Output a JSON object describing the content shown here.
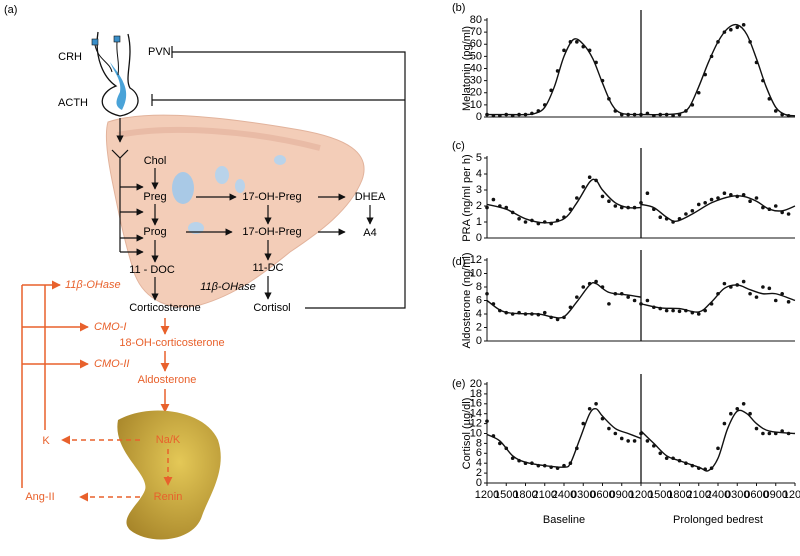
{
  "diagram": {
    "labels": [
      "(a)",
      "CRH",
      "PVN",
      "ACTH",
      "Chol",
      "Preg",
      "17-OH-Preg",
      "DHEA",
      "Prog",
      "17-OH-Preg",
      "A4",
      "11 - DOC",
      "11-DC",
      "11β-OHase",
      "Corticosterone",
      "Cortisol",
      "11β-OHase",
      "CMO-I",
      "18-OH-corticosterone",
      "CMO-II",
      "Aldosterone",
      "Na/K",
      "Renin",
      "K",
      "Ang-II"
    ]
  },
  "chart_data": [
    {
      "type": "scatter",
      "panel_label": "(b)",
      "ylabel": "Melatonin (pg/ml)",
      "xlim": [
        0,
        48
      ],
      "ylim": [
        0,
        80
      ],
      "yticks": [
        0,
        10,
        20,
        30,
        40,
        50,
        60,
        70,
        80
      ],
      "divider": 24,
      "series": [
        {
          "mode": "markers",
          "color": "#111111",
          "x": [
            0,
            1,
            2,
            3,
            4,
            5,
            6,
            7,
            8,
            9,
            10,
            11,
            12,
            13,
            14,
            15,
            16,
            17,
            18,
            19,
            20,
            21,
            22,
            23,
            24,
            25,
            26,
            27,
            28,
            29,
            30,
            31,
            32,
            33,
            34,
            35,
            36,
            37,
            38,
            39,
            40,
            41,
            42,
            43,
            44,
            45,
            46,
            47
          ],
          "values": [
            2,
            1,
            1,
            2,
            1,
            2,
            2,
            3,
            5,
            10,
            22,
            38,
            55,
            62,
            62,
            58,
            55,
            45,
            30,
            15,
            5,
            2,
            2,
            2,
            2,
            3,
            1,
            2,
            2,
            1,
            2,
            5,
            10,
            20,
            35,
            50,
            62,
            70,
            72,
            74,
            76,
            62,
            45,
            30,
            15,
            5,
            2,
            1
          ]
        },
        {
          "mode": "line",
          "color": "#111111",
          "x": [
            0,
            3,
            6,
            7.5,
            9,
            10.5,
            12,
            13.5,
            15,
            16.5,
            18,
            19.5,
            21,
            24
          ],
          "values": [
            2,
            2,
            2,
            3,
            8,
            25,
            50,
            64,
            60,
            48,
            28,
            10,
            3,
            2
          ]
        },
        {
          "mode": "line",
          "color": "#111111",
          "x": [
            24,
            27,
            30,
            31.5,
            33,
            34.5,
            36,
            37.5,
            39,
            40.5,
            42,
            43.5,
            45,
            46.5,
            48
          ],
          "values": [
            2,
            2,
            3,
            8,
            25,
            45,
            62,
            73,
            76,
            68,
            48,
            25,
            8,
            2,
            1
          ]
        }
      ]
    },
    {
      "type": "scatter",
      "panel_label": "(c)",
      "ylabel": "PRA (ng/ml per h)",
      "xlim": [
        0,
        48
      ],
      "ylim": [
        0,
        5
      ],
      "yticks": [
        0,
        1,
        2,
        3,
        4,
        5
      ],
      "divider": 24,
      "series": [
        {
          "mode": "markers",
          "color": "#111111",
          "x": [
            0,
            1,
            2,
            3,
            4,
            5,
            6,
            7,
            8,
            9,
            10,
            11,
            12,
            13,
            14,
            15,
            16,
            17,
            18,
            19,
            20,
            21,
            22,
            23,
            24,
            25,
            26,
            27,
            28,
            29,
            30,
            31,
            32,
            33,
            34,
            35,
            36,
            37,
            38,
            39,
            40,
            41,
            42,
            43,
            44,
            45,
            46,
            47
          ],
          "values": [
            1.9,
            2.4,
            2.0,
            1.9,
            1.6,
            1.2,
            1.0,
            1.1,
            0.9,
            1.0,
            0.9,
            1.1,
            1.3,
            1.8,
            2.5,
            3.2,
            3.8,
            3.6,
            2.6,
            2.3,
            2.0,
            1.9,
            1.9,
            1.9,
            2.2,
            2.8,
            1.8,
            1.3,
            1.2,
            1.0,
            1.2,
            1.5,
            1.7,
            2.1,
            2.2,
            2.4,
            2.5,
            2.8,
            2.7,
            2.6,
            2.7,
            2.3,
            2.5,
            1.9,
            1.8,
            2.0,
            1.6,
            1.5
          ]
        },
        {
          "mode": "line",
          "color": "#111111",
          "x": [
            0,
            3,
            6,
            9,
            12,
            14,
            16,
            17,
            18,
            20,
            22,
            24
          ],
          "values": [
            2.1,
            1.8,
            1.2,
            0.95,
            1.2,
            2.2,
            3.5,
            3.6,
            3.0,
            2.2,
            1.9,
            1.9
          ]
        },
        {
          "mode": "line",
          "color": "#111111",
          "x": [
            24,
            26,
            28,
            29.5,
            32,
            35,
            38,
            40,
            42,
            44,
            46,
            48
          ],
          "values": [
            2.1,
            1.9,
            1.3,
            1.05,
            1.5,
            2.2,
            2.6,
            2.6,
            2.3,
            1.8,
            1.7,
            2.0
          ]
        }
      ]
    },
    {
      "type": "scatter",
      "panel_label": "(d)",
      "ylabel": "Aldosterone (ng/ml)",
      "xlim": [
        0,
        48
      ],
      "ylim": [
        0,
        12
      ],
      "yticks": [
        0,
        2,
        4,
        6,
        8,
        10,
        12
      ],
      "divider": 24,
      "series": [
        {
          "mode": "markers",
          "color": "#111111",
          "x": [
            0,
            1,
            2,
            3,
            4,
            5,
            6,
            7,
            8,
            9,
            10,
            11,
            12,
            13,
            14,
            15,
            16,
            17,
            18,
            19,
            20,
            21,
            22,
            23,
            24,
            25,
            26,
            27,
            28,
            29,
            30,
            31,
            32,
            33,
            34,
            35,
            36,
            37,
            38,
            39,
            40,
            41,
            42,
            43,
            44,
            45,
            46,
            47
          ],
          "values": [
            7,
            5.5,
            4.5,
            4.2,
            4,
            4.2,
            4,
            4,
            3.9,
            4.2,
            3.5,
            3.2,
            3.5,
            5,
            6.5,
            8,
            8.5,
            8.8,
            8,
            5.5,
            7,
            7,
            6.5,
            6,
            5.5,
            6,
            5,
            4.8,
            4.5,
            4.5,
            4.4,
            4.5,
            4.2,
            4,
            4.5,
            5.5,
            7,
            8.5,
            8,
            8.3,
            8.8,
            7,
            6.5,
            8,
            7.8,
            6,
            7,
            5.8
          ]
        },
        {
          "mode": "line",
          "color": "#111111",
          "x": [
            0,
            2,
            4,
            8,
            10,
            12,
            14,
            16,
            17,
            19,
            22,
            24
          ],
          "values": [
            6,
            4.6,
            4.1,
            4,
            3.6,
            3.6,
            5.8,
            8.3,
            8.5,
            7.2,
            6.8,
            6.5
          ]
        },
        {
          "mode": "line",
          "color": "#111111",
          "x": [
            24,
            27,
            30,
            33,
            35,
            37,
            39,
            41,
            43,
            45,
            48
          ],
          "values": [
            5.5,
            4.9,
            4.8,
            4.3,
            5.8,
            7.8,
            8.3,
            7.6,
            7,
            7,
            6
          ]
        }
      ]
    },
    {
      "type": "scatter",
      "panel_label": "(e)",
      "ylabel": "Cortisol (µg/dl)",
      "xlim": [
        0,
        48
      ],
      "ylim": [
        0,
        20
      ],
      "yticks": [
        0,
        2,
        4,
        6,
        8,
        10,
        12,
        14,
        16,
        18,
        20
      ],
      "divider": 24,
      "xticks": [
        {
          "value": 0,
          "label": "1200"
        },
        {
          "value": 3,
          "label": "1500"
        },
        {
          "value": 6,
          "label": "1800"
        },
        {
          "value": 9,
          "label": "2100"
        },
        {
          "value": 12,
          "label": "2400"
        },
        {
          "value": 15,
          "label": "0300"
        },
        {
          "value": 18,
          "label": "0600"
        },
        {
          "value": 21,
          "label": "0900"
        },
        {
          "value": 24,
          "label": "1200"
        },
        {
          "value": 27,
          "label": "1500"
        },
        {
          "value": 30,
          "label": "1800"
        },
        {
          "value": 33,
          "label": "2100"
        },
        {
          "value": 36,
          "label": "2400"
        },
        {
          "value": 39,
          "label": "0300"
        },
        {
          "value": 42,
          "label": "0600"
        },
        {
          "value": 45,
          "label": "0900"
        },
        {
          "value": 48,
          "label": "1200"
        }
      ],
      "xlabels": [
        "Baseline",
        "Prolonged bedrest"
      ],
      "series": [
        {
          "mode": "markers",
          "color": "#111111",
          "x": [
            0,
            1,
            2,
            3,
            4,
            5,
            6,
            7,
            8,
            9,
            10,
            11,
            12,
            13,
            14,
            15,
            16,
            17,
            18,
            19,
            20,
            21,
            22,
            23,
            24,
            25,
            26,
            27,
            28,
            29,
            30,
            31,
            32,
            33,
            34,
            35,
            36,
            37,
            38,
            39,
            40,
            41,
            42,
            43,
            44,
            45,
            46,
            47
          ],
          "values": [
            12.5,
            9.5,
            8,
            7,
            5,
            4.5,
            4,
            4,
            3.5,
            3.5,
            3.2,
            3,
            3.5,
            4,
            7,
            12,
            15,
            16,
            13,
            11,
            10,
            9,
            8.5,
            8.5,
            10,
            8.5,
            7.5,
            6,
            5,
            5,
            4.5,
            4,
            3.5,
            3,
            2.8,
            3,
            7,
            12,
            14,
            15,
            16,
            14,
            11,
            10,
            10,
            10,
            10.5,
            10
          ]
        },
        {
          "mode": "line",
          "color": "#111111",
          "x": [
            0,
            2,
            4,
            6,
            9,
            12,
            13,
            14.5,
            16,
            17,
            18,
            20,
            22,
            24
          ],
          "values": [
            9.8,
            8.5,
            5.5,
            4.2,
            3.5,
            3.2,
            4,
            9,
            14,
            15,
            13.5,
            11,
            10,
            9
          ]
        },
        {
          "mode": "line",
          "color": "#111111",
          "x": [
            24,
            26,
            28,
            30,
            33,
            34.5,
            36,
            37.5,
            39,
            40.5,
            42,
            44,
            48
          ],
          "values": [
            10.5,
            8,
            5.5,
            4.5,
            3.2,
            2.5,
            5,
            11,
            14.5,
            14,
            12,
            10.5,
            10
          ]
        }
      ]
    }
  ]
}
